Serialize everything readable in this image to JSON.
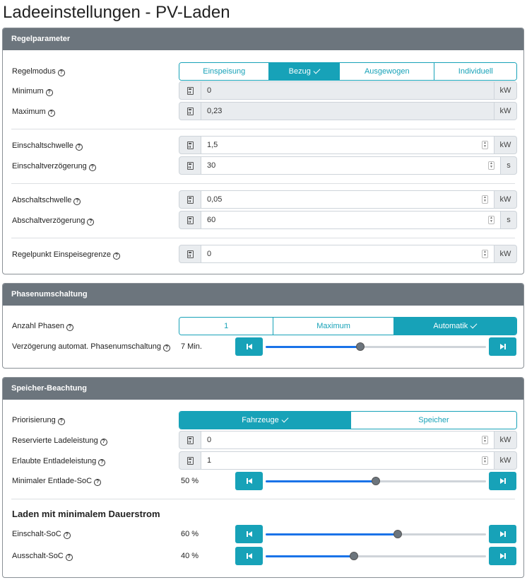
{
  "page_title": "Ladeeinstellungen - PV-Laden",
  "regelparameter": {
    "header": "Regelparameter",
    "regelmodus": {
      "label": "Regelmodus",
      "options": [
        "Einspeisung",
        "Bezug",
        "Ausgewogen",
        "Individuell"
      ],
      "selected": "Bezug"
    },
    "minimum": {
      "label": "Minimum",
      "value": "0",
      "unit": "kW"
    },
    "maximum": {
      "label": "Maximum",
      "value": "0,23",
      "unit": "kW"
    },
    "einschaltschwelle": {
      "label": "Einschaltschwelle",
      "value": "1,5",
      "unit": "kW"
    },
    "einschaltverzoegerung": {
      "label": "Einschaltverzögerung",
      "value": "30",
      "unit": "s"
    },
    "abschaltschwelle": {
      "label": "Abschaltschwelle",
      "value": "0,05",
      "unit": "kW"
    },
    "abschaltverzoegerung": {
      "label": "Abschaltverzögerung",
      "value": "60",
      "unit": "s"
    },
    "regelpunkt": {
      "label": "Regelpunkt Einspeisegrenze",
      "value": "0",
      "unit": "kW"
    }
  },
  "phasenumschaltung": {
    "header": "Phasenumschaltung",
    "anzahl_phasen": {
      "label": "Anzahl Phasen",
      "options": [
        "1",
        "Maximum",
        "Automatik"
      ],
      "selected": "Automatik"
    },
    "verzoegerung": {
      "label": "Verzögerung automat. Phasenumschaltung",
      "value_text": "7 Min.",
      "slider_fraction": 0.43
    }
  },
  "speicher": {
    "header": "Speicher-Beachtung",
    "priorisierung": {
      "label": "Priorisierung",
      "options": [
        "Fahrzeuge",
        "Speicher"
      ],
      "selected": "Fahrzeuge"
    },
    "reservierte": {
      "label": "Reservierte Ladeleistung",
      "value": "0",
      "unit": "kW"
    },
    "erlaubte": {
      "label": "Erlaubte Entladeleistung",
      "value": "1",
      "unit": "kW"
    },
    "min_entlade_soc": {
      "label": "Minimaler Entlade-SoC",
      "value_text": "50 %",
      "slider_fraction": 0.5
    },
    "dauerstrom_heading": "Laden mit minimalem Dauerstrom",
    "einschalt_soc": {
      "label": "Einschalt-SoC",
      "value_text": "60 %",
      "slider_fraction": 0.6
    },
    "ausschalt_soc": {
      "label": "Ausschalt-SoC",
      "value_text": "40 %",
      "slider_fraction": 0.4
    }
  },
  "icons": {
    "help": "question-circle-icon",
    "calculator": "calculator-icon",
    "check": "check-icon",
    "step_backward": "step-backward-icon",
    "step_forward": "step-forward-icon"
  },
  "colors": {
    "accent": "#17a2b8",
    "card_header": "#6c757d",
    "slider_fill": "#1a73e8"
  }
}
